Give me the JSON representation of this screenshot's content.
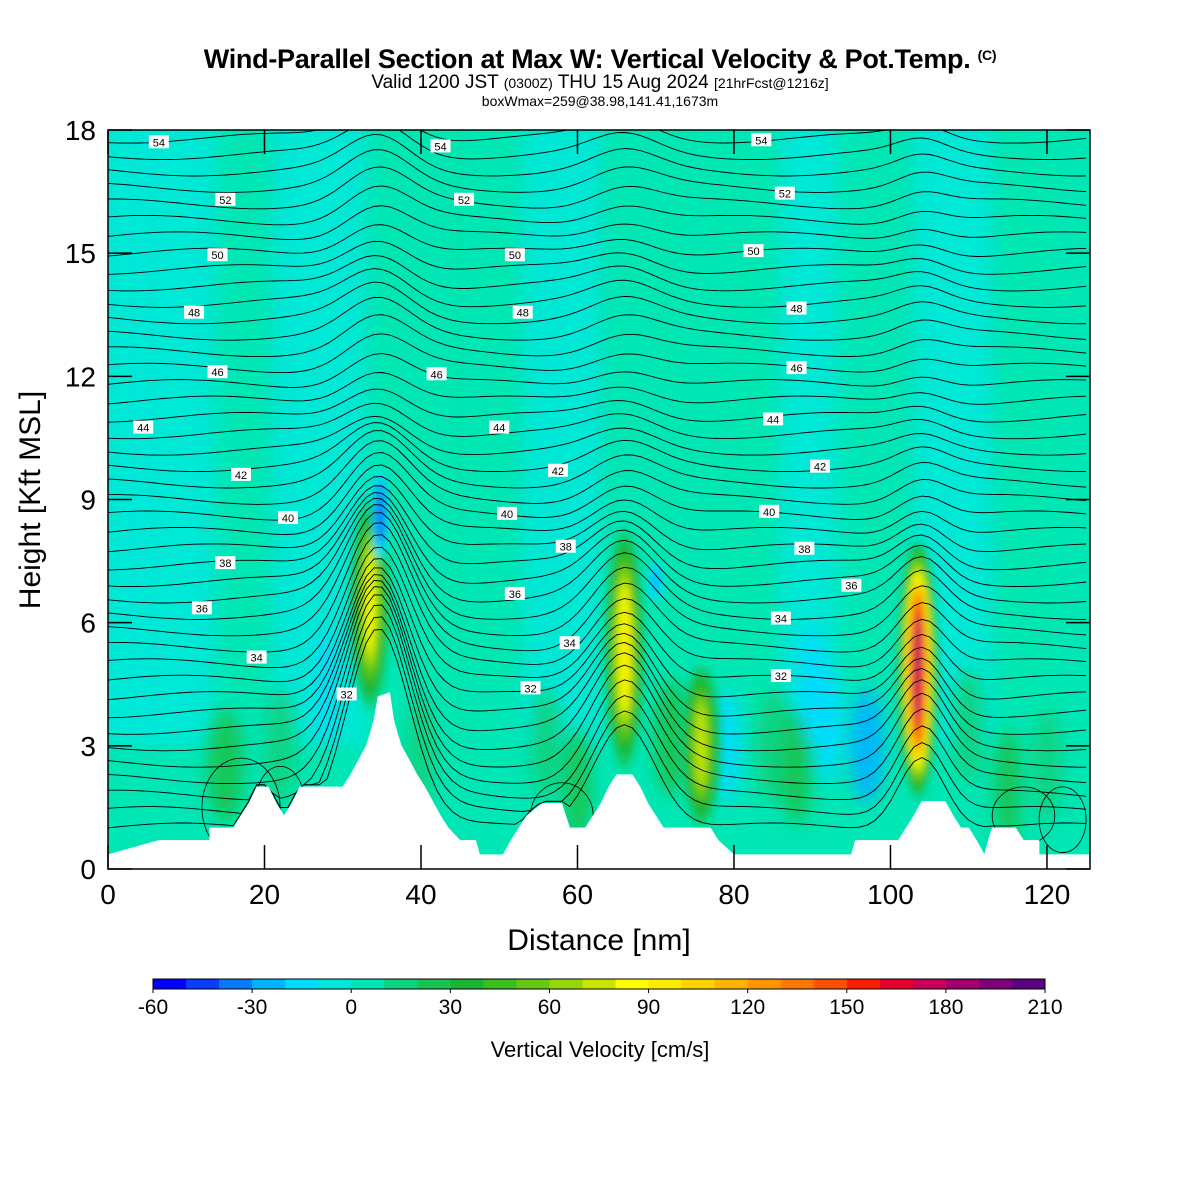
{
  "title": {
    "main": "Wind-Parallel Section at Max W: Vertical Velocity & Pot.Temp.",
    "copyright": "(C)",
    "valid_prefix": "Valid 1200 JST",
    "valid_utc": "(0300Z)",
    "valid_date": "THU 15 Aug 2024",
    "forecast": "[21hrFcst@1216z]",
    "box_info": "boxWmax=259@38.98,141.41,1673m"
  },
  "chart_data": {
    "type": "heatmap",
    "xlabel": "Distance [nm]",
    "ylabel": "Height [Kft MSL]",
    "xlim": [
      0,
      125.5
    ],
    "ylim": [
      0,
      18
    ],
    "x_ticks": [
      0,
      20,
      40,
      60,
      80,
      100,
      120
    ],
    "y_ticks": [
      0,
      3,
      6,
      9,
      12,
      15,
      18
    ],
    "x_tick_labels": [
      "0",
      "20",
      "40",
      "60",
      "80",
      "100",
      "120"
    ],
    "y_tick_labels": [
      "0",
      "3",
      "6",
      "9",
      "12",
      "15",
      "18"
    ],
    "colorbar": {
      "title": "Vertical Velocity [cm/s]",
      "min": -60,
      "max": 210,
      "step": 10,
      "labels": [
        "-60",
        "-30",
        "0",
        "30",
        "60",
        "90",
        "120",
        "150",
        "180",
        "210"
      ],
      "colors": [
        "#0000ff",
        "#0a3cff",
        "#0a78ff",
        "#00b4ff",
        "#00dcff",
        "#00e8dc",
        "#00e6b4",
        "#0ad27d",
        "#19c350",
        "#19b432",
        "#3cbe1e",
        "#64c814",
        "#96d70a",
        "#c8e600",
        "#ffff00",
        "#ffeb00",
        "#ffd200",
        "#ffb400",
        "#ff9600",
        "#ff7800",
        "#ff5000",
        "#ff1e00",
        "#e6002d",
        "#c8005a",
        "#a0006e",
        "#7d0078",
        "#5a0082"
      ]
    },
    "theta_contours": {
      "units": "C",
      "interval": 1,
      "labels": [
        {
          "value": "54",
          "x": 6.5,
          "y": 17.7
        },
        {
          "value": "54",
          "x": 42.5,
          "y": 17.6
        },
        {
          "value": "54",
          "x": 83.5,
          "y": 17.75
        },
        {
          "value": "52",
          "x": 15,
          "y": 16.3
        },
        {
          "value": "52",
          "x": 45.5,
          "y": 16.3
        },
        {
          "value": "52",
          "x": 86.5,
          "y": 16.45
        },
        {
          "value": "50",
          "x": 14,
          "y": 14.95
        },
        {
          "value": "50",
          "x": 52,
          "y": 14.95
        },
        {
          "value": "50",
          "x": 82.5,
          "y": 15.05
        },
        {
          "value": "48",
          "x": 11,
          "y": 13.55
        },
        {
          "value": "48",
          "x": 53,
          "y": 13.55
        },
        {
          "value": "48",
          "x": 88,
          "y": 13.65
        },
        {
          "value": "46",
          "x": 14,
          "y": 12.1
        },
        {
          "value": "46",
          "x": 42,
          "y": 12.05
        },
        {
          "value": "46",
          "x": 88,
          "y": 12.2
        },
        {
          "value": "44",
          "x": 4.5,
          "y": 10.75
        },
        {
          "value": "44",
          "x": 50,
          "y": 10.75
        },
        {
          "value": "44",
          "x": 85,
          "y": 10.95
        },
        {
          "value": "42",
          "x": 17,
          "y": 9.6
        },
        {
          "value": "42",
          "x": 57.5,
          "y": 9.7
        },
        {
          "value": "42",
          "x": 91,
          "y": 9.8
        },
        {
          "value": "40",
          "x": 23,
          "y": 8.55
        },
        {
          "value": "40",
          "x": 51,
          "y": 8.65
        },
        {
          "value": "40",
          "x": 84.5,
          "y": 8.7
        },
        {
          "value": "38",
          "x": 15,
          "y": 7.45
        },
        {
          "value": "38",
          "x": 58.5,
          "y": 7.85
        },
        {
          "value": "38",
          "x": 89,
          "y": 7.8
        },
        {
          "value": "36",
          "x": 12,
          "y": 6.35
        },
        {
          "value": "36",
          "x": 52,
          "y": 6.7
        },
        {
          "value": "36",
          "x": 95,
          "y": 6.9
        },
        {
          "value": "34",
          "x": 19,
          "y": 5.15
        },
        {
          "value": "34",
          "x": 59,
          "y": 5.5
        },
        {
          "value": "34",
          "x": 86,
          "y": 6.1
        },
        {
          "value": "32",
          "x": 30.5,
          "y": 4.25
        },
        {
          "value": "32",
          "x": 54,
          "y": 4.4
        },
        {
          "value": "32",
          "x": 86,
          "y": 4.7
        }
      ]
    },
    "terrain_kft": [
      [
        0,
        0.35
      ],
      [
        6.5,
        0.7
      ],
      [
        13,
        0.7
      ],
      [
        13,
        1.0
      ],
      [
        16,
        1.0
      ],
      [
        17,
        1.3
      ],
      [
        18,
        1.6
      ],
      [
        19,
        2.0
      ],
      [
        20.5,
        2.0
      ],
      [
        21.5,
        1.6
      ],
      [
        22.5,
        1.3
      ],
      [
        23.5,
        1.6
      ],
      [
        24.5,
        2.0
      ],
      [
        30,
        2.0
      ],
      [
        31,
        2.3
      ],
      [
        32,
        2.65
      ],
      [
        33,
        3.0
      ],
      [
        33.5,
        3.3
      ],
      [
        34,
        3.65
      ],
      [
        34.5,
        4.2
      ],
      [
        36,
        4.3
      ],
      [
        36.5,
        3.65
      ],
      [
        37,
        3.3
      ],
      [
        37.5,
        3.0
      ],
      [
        38.5,
        2.65
      ],
      [
        39.5,
        2.3
      ],
      [
        40.5,
        2.0
      ],
      [
        41.5,
        1.65
      ],
      [
        42.5,
        1.3
      ],
      [
        43.5,
        1.0
      ],
      [
        45,
        0.7
      ],
      [
        47,
        0.7
      ],
      [
        47.5,
        0.35
      ],
      [
        50.5,
        0.35
      ],
      [
        51.5,
        0.7
      ],
      [
        52.5,
        1.0
      ],
      [
        53.5,
        1.3
      ],
      [
        55.5,
        1.6
      ],
      [
        58,
        1.6
      ],
      [
        59,
        1.0
      ],
      [
        61,
        1.0
      ],
      [
        62,
        1.3
      ],
      [
        63,
        1.6
      ],
      [
        64,
        2.0
      ],
      [
        65,
        2.3
      ],
      [
        67,
        2.3
      ],
      [
        68,
        2.0
      ],
      [
        69,
        1.6
      ],
      [
        70,
        1.3
      ],
      [
        71,
        1.0
      ],
      [
        77,
        1.0
      ],
      [
        78,
        0.7
      ],
      [
        80,
        0.35
      ],
      [
        95,
        0.35
      ],
      [
        95.5,
        0.7
      ],
      [
        101,
        0.7
      ],
      [
        102,
        1.0
      ],
      [
        103,
        1.3
      ],
      [
        104,
        1.65
      ],
      [
        107,
        1.65
      ],
      [
        108,
        1.3
      ],
      [
        109,
        1.0
      ],
      [
        110,
        1.0
      ],
      [
        111,
        0.7
      ],
      [
        112,
        0.35
      ],
      [
        112.5,
        0.7
      ],
      [
        113,
        1.0
      ],
      [
        116,
        1.0
      ],
      [
        117,
        0.7
      ],
      [
        119,
        0.7
      ],
      [
        119,
        0.35
      ],
      [
        125.5,
        0.35
      ]
    ],
    "w_features": [
      {
        "x": 33.5,
        "y_bottom": 3.9,
        "y_top": 9.0,
        "max_cm_s": 80
      },
      {
        "x": 66,
        "y_bottom": 2.4,
        "y_top": 8.3,
        "max_cm_s": 90
      },
      {
        "x": 75.8,
        "y_bottom": 1.0,
        "y_top": 5.0,
        "max_cm_s": 75
      },
      {
        "x": 103.5,
        "y_bottom": 1.7,
        "y_top": 8.0,
        "max_cm_s": 180
      },
      {
        "x": 34.8,
        "y_bottom": 7.5,
        "y_top": 9.8,
        "max_cm_s": -50
      },
      {
        "x": 70,
        "y_bottom": 6.5,
        "y_top": 7.5,
        "max_cm_s": -30
      }
    ]
  }
}
